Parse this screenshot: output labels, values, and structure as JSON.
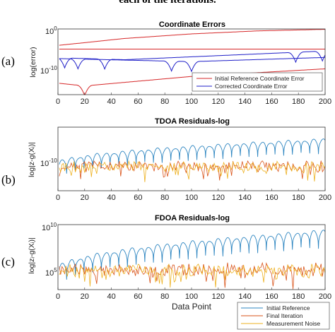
{
  "header_fragment": "each of the iterations.",
  "panel_labels": [
    "(a)",
    "(b)",
    "(c)"
  ],
  "colors": {
    "red": "#d62728",
    "blue": "#1f1fc8",
    "lightblue": "#2e86c1",
    "orange": "#d95319",
    "yellow": "#edb120"
  },
  "chart_data": [
    {
      "type": "line",
      "title": "Coordinate Errors",
      "ylabel": "log(error)",
      "xlabel": "",
      "xlim": [
        0,
        200
      ],
      "xticks": [
        "0",
        "20",
        "40",
        "60",
        "80",
        "100",
        "120",
        "140",
        "160",
        "180",
        "200"
      ],
      "ylim_exp": [
        -16,
        1
      ],
      "yticks": [
        {
          "base": "10",
          "exp": "0",
          "value": 0
        },
        {
          "base": "10",
          "exp": "-10",
          "value": -10
        }
      ],
      "scale": "log",
      "legend": [
        "Initial Reference Coordinate Error",
        "Corrected Coordinate Error"
      ],
      "legend_position": "lower-right",
      "series": [
        {
          "name": "Initial Reference Coordinate Error",
          "color": "red",
          "style": "rise",
          "points_log10": [
            [
              1,
              -3.0
            ],
            [
              50,
              -1.2
            ],
            [
              100,
              0.0
            ],
            [
              150,
              0.8
            ],
            [
              200,
              1.2
            ]
          ]
        },
        {
          "name": "Initial Reference Coordinate Error",
          "color": "red",
          "style": "flat",
          "points_log10": [
            [
              1,
              -4.0
            ],
            [
              200,
              -4.0
            ]
          ]
        },
        {
          "name": "Initial Reference Coordinate Error",
          "color": "red",
          "style": "dip",
          "dips": [
            20
          ],
          "points_log10": [
            [
              1,
              -13.0
            ],
            [
              20,
              -13.7
            ],
            [
              100,
              -11.2
            ],
            [
              200,
              -9.2
            ]
          ]
        },
        {
          "name": "Corrected Coordinate Error",
          "color": "blue",
          "style": "dip",
          "dips": [
            15,
            85,
            100
          ],
          "points_log10": [
            [
              1,
              -6.5
            ],
            [
              100,
              -7.3
            ],
            [
              200,
              -6.2
            ]
          ]
        },
        {
          "name": "Corrected Coordinate Error",
          "color": "blue",
          "style": "dip",
          "dips": [
            5,
            35,
            178,
            198
          ],
          "points_log10": [
            [
              1,
              -6.3
            ],
            [
              50,
              -6.8
            ],
            [
              200,
              -4.5
            ]
          ]
        }
      ]
    },
    {
      "type": "line",
      "title": "TDOA Residuals-log",
      "ylabel": "log|z-g(Xᵢ)|",
      "xlabel": "",
      "xlim": [
        0,
        200
      ],
      "xticks": [
        "0",
        "20",
        "40",
        "60",
        "80",
        "100",
        "120",
        "140",
        "160",
        "180",
        "200"
      ],
      "yticks": [
        {
          "base": "10",
          "exp": "-10",
          "value": -10
        }
      ],
      "scale": "log",
      "series": [
        {
          "name": "Initial Reference",
          "color": "lightblue",
          "trend_log10": [
            -10.8,
            -7.5
          ],
          "period": 6.5
        },
        {
          "name": "Final Iteration",
          "color": "orange",
          "noise_level_log10": -11.2
        },
        {
          "name": "Measurement Noise",
          "color": "yellow",
          "noise_level_log10": -11.3
        }
      ]
    },
    {
      "type": "line",
      "title": "FDOA Residuals-log",
      "ylabel": "log|zᵢ-g(Xᵢ)|",
      "xlabel": "Data Point",
      "xlim": [
        0,
        200
      ],
      "xticks": [
        "0",
        "20",
        "40",
        "60",
        "80",
        "100",
        "120",
        "140",
        "160",
        "180",
        "200"
      ],
      "yticks": [
        {
          "base": "10",
          "exp": "10",
          "value": 10
        },
        {
          "base": "10",
          "exp": "5",
          "value": 5
        }
      ],
      "scale": "log",
      "legend": [
        "Initial Reference",
        "Final Iteration",
        "Measurement Noise"
      ],
      "legend_position": "lower-right",
      "series": [
        {
          "name": "Initial Reference",
          "color": "lightblue",
          "trend_log10": [
            5.5,
            9.8
          ],
          "period": 6.5
        },
        {
          "name": "Final Iteration",
          "color": "orange",
          "noise_level_log10": 5.4
        },
        {
          "name": "Measurement Noise",
          "color": "yellow",
          "noise_level_log10": 5.3
        }
      ]
    }
  ]
}
